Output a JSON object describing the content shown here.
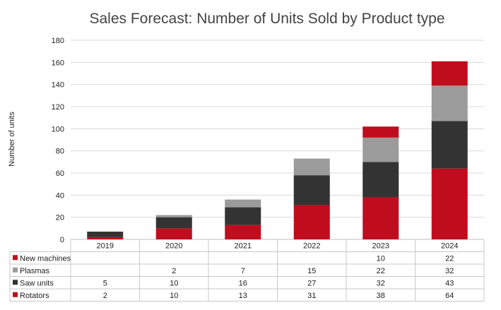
{
  "chart_data": {
    "type": "bar",
    "stacked": true,
    "title": "Sales Forecast: Number of Units Sold by Product type",
    "xlabel": "",
    "ylabel": "Number of units",
    "ylim": [
      0,
      180
    ],
    "yticks": [
      0,
      20,
      40,
      60,
      80,
      100,
      120,
      140,
      160,
      180
    ],
    "grid": true,
    "legend": "data-table-left",
    "categories": [
      "2019",
      "2020",
      "2021",
      "2022",
      "2023",
      "2024"
    ],
    "series": [
      {
        "name": "Rotators",
        "color": "#c00d1e",
        "values": [
          2,
          10,
          13,
          31,
          38,
          64
        ]
      },
      {
        "name": "Saw units",
        "color": "#333333",
        "values": [
          5,
          10,
          16,
          27,
          32,
          43
        ]
      },
      {
        "name": "Plasmas",
        "color": "#9b9b9b",
        "values": [
          null,
          2,
          7,
          15,
          22,
          32
        ]
      },
      {
        "name": "New machines",
        "color": "#c00d1e",
        "values": [
          null,
          null,
          null,
          null,
          10,
          22
        ]
      }
    ],
    "table_rows": [
      "New machines",
      "Plasmas",
      "Saw units",
      "Rotators"
    ]
  }
}
